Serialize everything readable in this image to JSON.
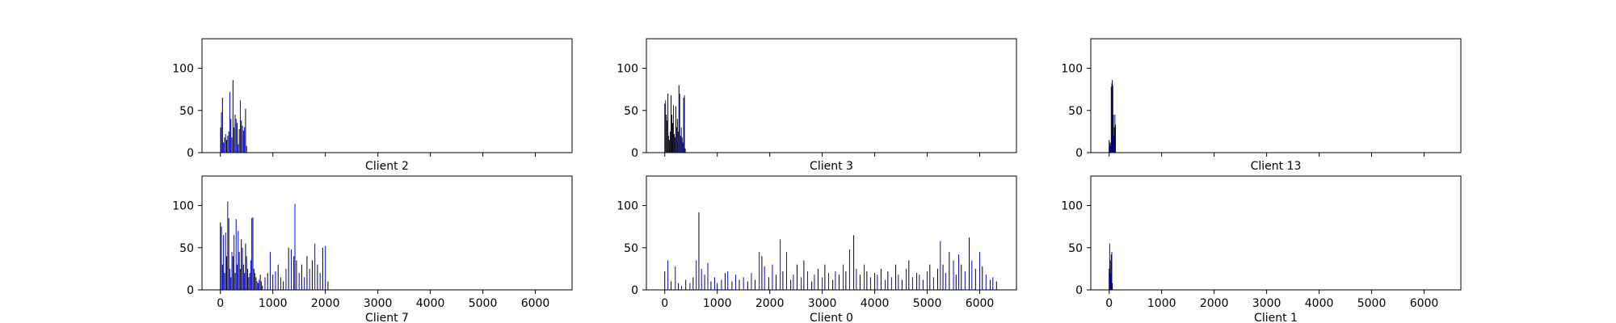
{
  "chart_data": [
    {
      "type": "bar",
      "xlabel": "Client 2",
      "xlim": [
        -350,
        6700
      ],
      "ylim": [
        0,
        135
      ],
      "yticks": [
        0,
        50,
        100
      ],
      "xticks": [
        0,
        1000,
        2000,
        3000,
        4000,
        5000,
        6000
      ],
      "show_xtick_labels": false,
      "colors": [
        "#000000",
        "#0000ff"
      ],
      "series": [
        {
          "x": [
            5,
            20,
            40,
            60,
            80,
            100,
            120,
            140,
            160,
            180,
            200,
            220,
            240,
            260,
            280,
            300,
            320,
            340,
            360,
            380,
            400,
            420,
            440,
            460,
            480,
            500
          ],
          "values": [
            30,
            48,
            65,
            12,
            18,
            22,
            15,
            20,
            25,
            72,
            40,
            18,
            86,
            30,
            45,
            40,
            35,
            10,
            28,
            62,
            38,
            32,
            26,
            30,
            52,
            8
          ]
        }
      ]
    },
    {
      "type": "bar",
      "xlabel": "Client 3",
      "xlim": [
        -350,
        6700
      ],
      "ylim": [
        0,
        135
      ],
      "yticks": [
        0,
        50,
        100
      ],
      "xticks": [
        0,
        1000,
        2000,
        3000,
        4000,
        5000,
        6000
      ],
      "show_xtick_labels": false,
      "colors": [
        "#000000",
        "#0000ff"
      ],
      "series": [
        {
          "x": [
            0,
            15,
            30,
            45,
            60,
            75,
            90,
            105,
            120,
            135,
            150,
            165,
            180,
            195,
            210,
            225,
            240,
            255,
            270,
            285,
            300,
            315,
            330,
            345,
            360,
            375,
            390
          ],
          "values": [
            58,
            62,
            45,
            38,
            70,
            20,
            15,
            25,
            68,
            45,
            35,
            56,
            22,
            18,
            55,
            30,
            40,
            25,
            80,
            70,
            20,
            30,
            18,
            12,
            65,
            68,
            5
          ]
        }
      ]
    },
    {
      "type": "bar",
      "xlabel": "Client 13",
      "xlim": [
        -350,
        6700
      ],
      "ylim": [
        0,
        135
      ],
      "yticks": [
        0,
        50,
        100
      ],
      "xticks": [
        0,
        1000,
        2000,
        3000,
        4000,
        5000,
        6000
      ],
      "show_xtick_labels": false,
      "colors": [
        "#000000",
        "#0000ff"
      ],
      "series": [
        {
          "x": [
            0,
            10,
            20,
            30,
            40,
            50,
            60,
            70,
            80,
            90,
            100,
            110,
            120
          ],
          "values": [
            15,
            10,
            12,
            8,
            78,
            82,
            86,
            80,
            45,
            20,
            30,
            45,
            33
          ]
        }
      ]
    },
    {
      "type": "bar",
      "xlabel": "Client 7",
      "xlim": [
        -350,
        6700
      ],
      "ylim": [
        0,
        135
      ],
      "yticks": [
        0,
        50,
        100
      ],
      "xticks": [
        0,
        1000,
        2000,
        3000,
        4000,
        5000,
        6000
      ],
      "show_xtick_labels": true,
      "colors": [
        "#000000",
        "#0000ff"
      ],
      "series": [
        {
          "x": [
            0,
            20,
            40,
            60,
            80,
            100,
            120,
            140,
            160,
            180,
            200,
            220,
            240,
            260,
            280,
            300,
            320,
            340,
            360,
            380,
            400,
            420,
            440,
            460,
            480,
            500,
            520,
            540,
            560,
            580,
            600,
            620,
            640,
            660,
            680,
            700,
            720,
            740,
            760,
            780,
            800,
            850,
            900,
            950,
            1000,
            1050,
            1100,
            1150,
            1200,
            1250,
            1300,
            1350,
            1400,
            1420,
            1450,
            1500,
            1550,
            1600,
            1650,
            1700,
            1750,
            1800,
            1850,
            1900,
            1950,
            2000,
            2050
          ],
          "values": [
            80,
            75,
            30,
            65,
            20,
            68,
            40,
            105,
            85,
            25,
            15,
            45,
            40,
            65,
            20,
            84,
            30,
            70,
            45,
            25,
            60,
            50,
            30,
            20,
            55,
            40,
            25,
            15,
            20,
            35,
            85,
            86,
            25,
            20,
            15,
            10,
            8,
            12,
            18,
            10,
            5,
            15,
            20,
            45,
            18,
            22,
            30,
            15,
            10,
            25,
            50,
            48,
            40,
            102,
            35,
            20,
            30,
            15,
            40,
            25,
            35,
            55,
            30,
            20,
            50,
            52,
            10
          ]
        }
      ]
    },
    {
      "type": "bar",
      "xlabel": "Client 0",
      "xlim": [
        -350,
        6700
      ],
      "ylim": [
        0,
        135
      ],
      "yticks": [
        0,
        50,
        100
      ],
      "xticks": [
        0,
        1000,
        2000,
        3000,
        4000,
        5000,
        6000
      ],
      "show_xtick_labels": true,
      "colors": [
        "#000000",
        "#0000ff"
      ],
      "series": [
        {
          "x": [
            0,
            60,
            120,
            200,
            260,
            320,
            400,
            480,
            540,
            600,
            650,
            700,
            760,
            820,
            880,
            950,
            1000,
            1080,
            1150,
            1200,
            1280,
            1350,
            1420,
            1500,
            1580,
            1650,
            1720,
            1800,
            1850,
            1900,
            1980,
            2050,
            2120,
            2200,
            2250,
            2320,
            2400,
            2450,
            2520,
            2600,
            2650,
            2720,
            2800,
            2850,
            2920,
            3000,
            3050,
            3120,
            3200,
            3250,
            3320,
            3400,
            3450,
            3520,
            3600,
            3650,
            3720,
            3800,
            3850,
            3920,
            4000,
            4050,
            4120,
            4200,
            4250,
            4320,
            4400,
            4450,
            4520,
            4600,
            4650,
            4720,
            4800,
            4850,
            4920,
            5000,
            5050,
            5120,
            5200,
            5250,
            5300,
            5350,
            5420,
            5500,
            5550,
            5600,
            5650,
            5720,
            5800,
            5850,
            5920,
            6000,
            6050,
            6120,
            6200,
            6250,
            6320
          ],
          "values": [
            22,
            35,
            10,
            28,
            8,
            5,
            12,
            8,
            15,
            35,
            92,
            25,
            18,
            32,
            10,
            15,
            8,
            12,
            20,
            22,
            10,
            18,
            12,
            15,
            10,
            20,
            12,
            45,
            40,
            28,
            15,
            30,
            18,
            60,
            22,
            45,
            12,
            18,
            30,
            15,
            35,
            22,
            10,
            18,
            25,
            15,
            30,
            20,
            12,
            22,
            18,
            30,
            22,
            48,
            65,
            25,
            18,
            30,
            22,
            15,
            20,
            18,
            25,
            12,
            22,
            15,
            30,
            18,
            12,
            25,
            35,
            15,
            20,
            18,
            12,
            22,
            30,
            15,
            25,
            58,
            30,
            20,
            45,
            35,
            18,
            42,
            30,
            22,
            62,
            35,
            25,
            45,
            28,
            18,
            12,
            15,
            10
          ]
        }
      ]
    },
    {
      "type": "bar",
      "xlabel": "Client 1",
      "xlim": [
        -350,
        6700
      ],
      "ylim": [
        0,
        135
      ],
      "yticks": [
        0,
        50,
        100
      ],
      "xticks": [
        0,
        1000,
        2000,
        3000,
        4000,
        5000,
        6000
      ],
      "show_xtick_labels": true,
      "colors": [
        "#000000",
        "#0000ff"
      ],
      "series": [
        {
          "x": [
            0,
            10,
            20,
            30,
            40,
            50,
            60
          ],
          "values": [
            25,
            55,
            35,
            20,
            42,
            45,
            8
          ]
        }
      ]
    }
  ]
}
